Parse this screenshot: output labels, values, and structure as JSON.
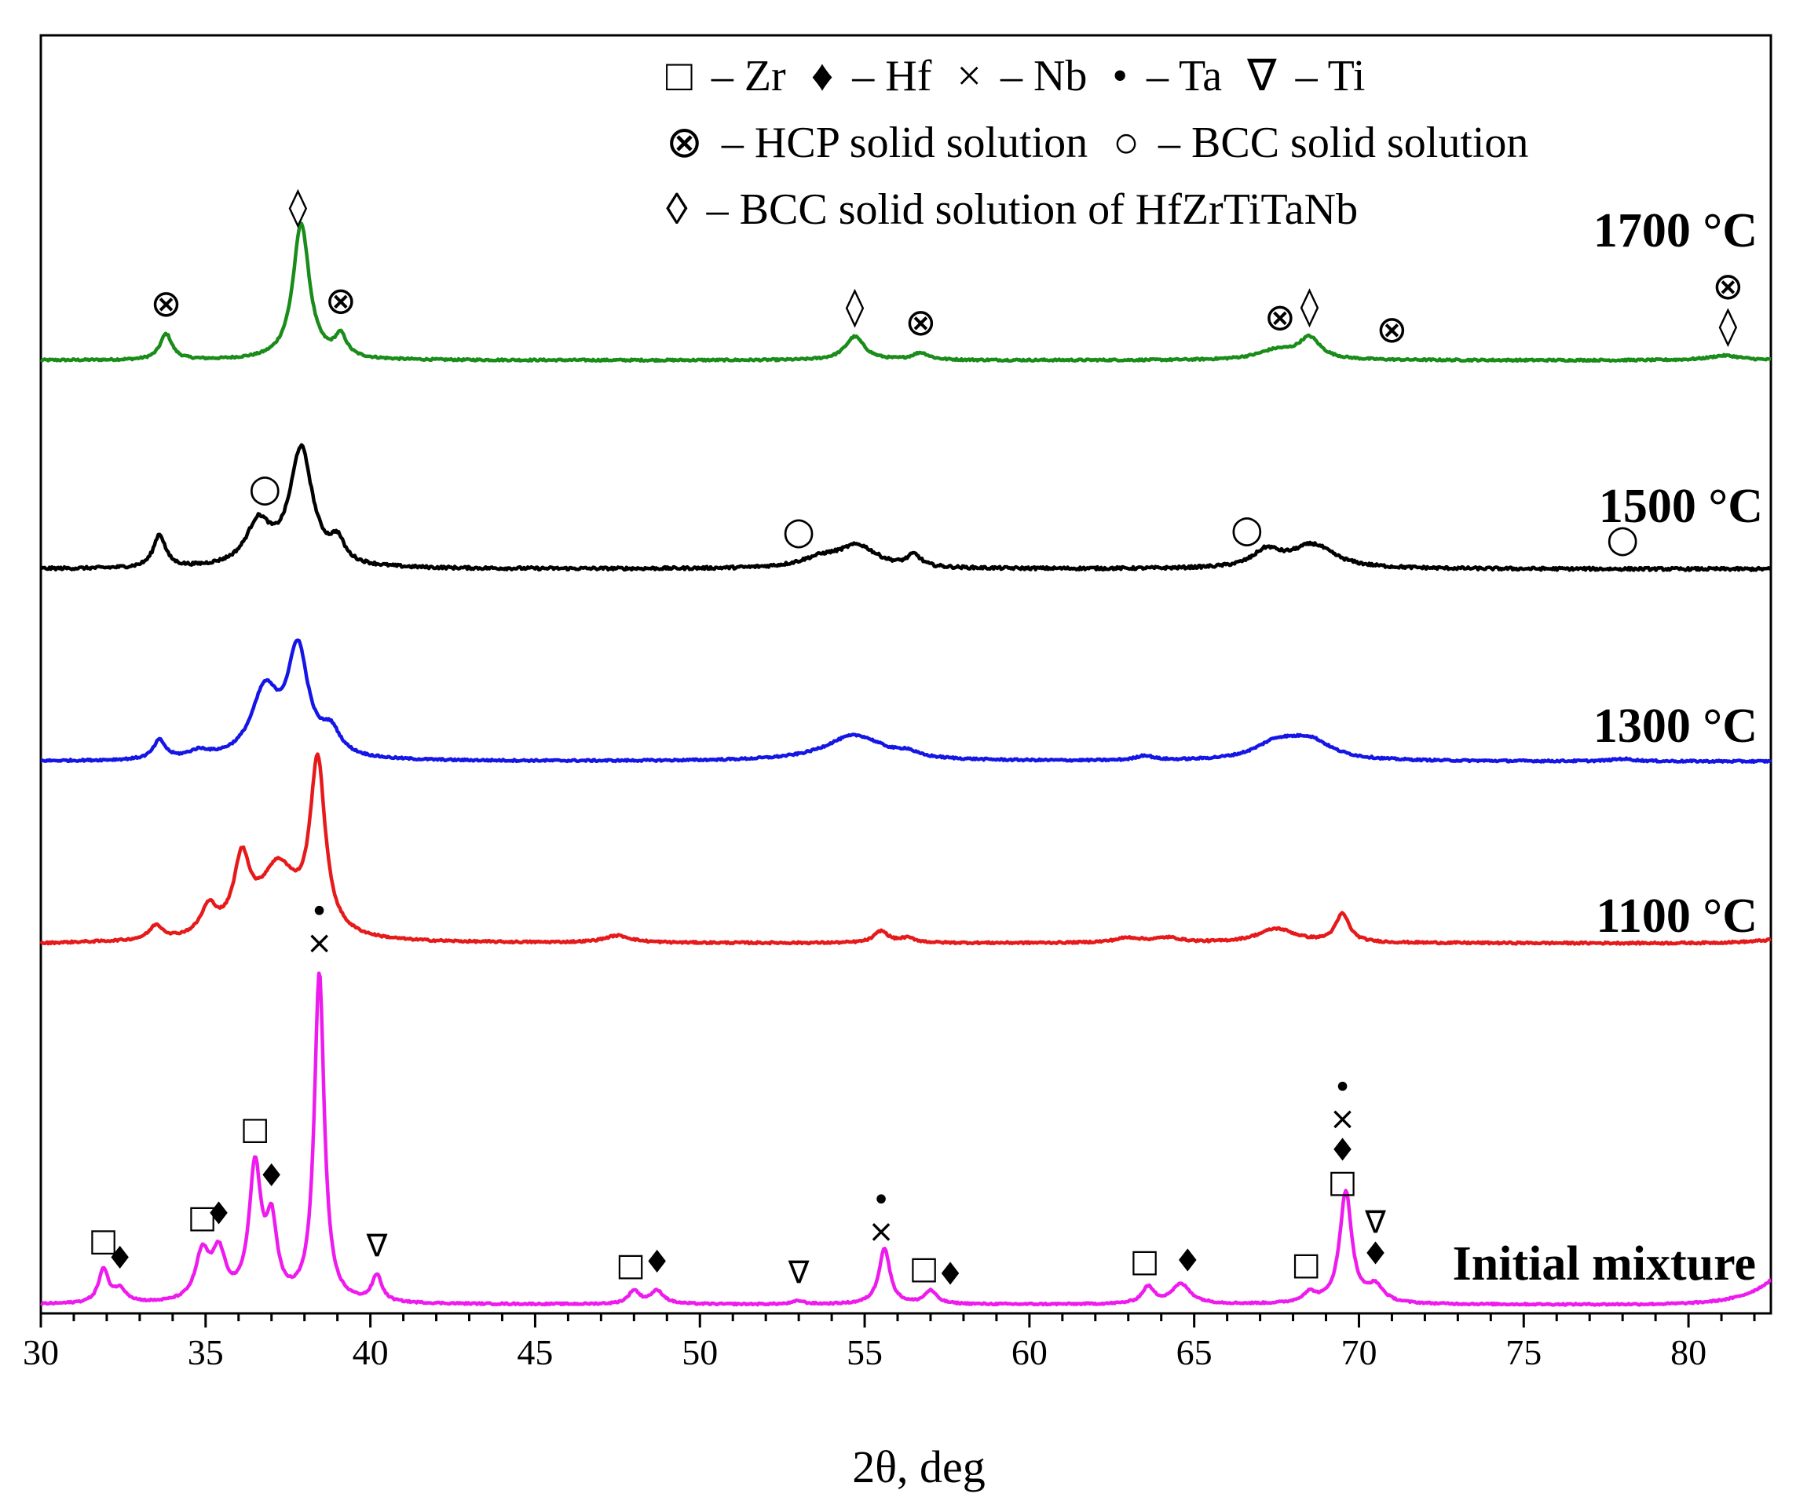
{
  "chart_data": {
    "type": "line",
    "title": "",
    "xlabel": "2θ, deg",
    "ylabel": "",
    "xlim": [
      30,
      82.5
    ],
    "xticks": [
      30,
      35,
      40,
      45,
      50,
      55,
      60,
      65,
      70,
      75,
      80
    ],
    "grid": false,
    "legend": {
      "position": "top",
      "lines": [
        [
          {
            "symbol": "□",
            "text": "– Zr"
          },
          {
            "symbol": "♦",
            "text": "– Hf"
          },
          {
            "symbol": "×",
            "text": "– Nb"
          },
          {
            "symbol": "•",
            "text": "– Ta"
          },
          {
            "symbol": "∇",
            "text": "– Ti"
          }
        ],
        [
          {
            "symbol": "⊗",
            "text": "– HCP solid solution"
          },
          {
            "symbol": "○",
            "text": "– BCC solid solution"
          }
        ],
        [
          {
            "symbol": "◊",
            "text": "– BCC solid solution of HfZrTiTaNb"
          }
        ]
      ]
    },
    "series": [
      {
        "name": "1700 °C",
        "color": "#1a8c1a",
        "baseline": 0.07,
        "noise": 0.004,
        "endpoints": [
          0.07,
          0.07
        ],
        "peaks": [
          [
            33.8,
            0.11,
            0.22
          ],
          [
            37.9,
            0.58,
            0.3
          ],
          [
            39.1,
            0.09,
            0.22
          ],
          [
            54.7,
            0.1,
            0.35
          ],
          [
            56.7,
            0.03,
            0.3
          ],
          [
            67.5,
            0.04,
            0.7
          ],
          [
            68.5,
            0.09,
            0.4
          ],
          [
            81.1,
            0.02,
            0.6
          ]
        ]
      },
      {
        "name": "1500 °C",
        "color": "#000000",
        "baseline": 0.05,
        "noise": 0.006,
        "endpoints": [
          0.05,
          0.05
        ],
        "peaks": [
          [
            33.6,
            0.14,
            0.22
          ],
          [
            36.6,
            0.18,
            0.45
          ],
          [
            37.9,
            0.5,
            0.42
          ],
          [
            39.0,
            0.09,
            0.25
          ],
          [
            53.7,
            0.04,
            0.8
          ],
          [
            54.8,
            0.09,
            0.7
          ],
          [
            56.5,
            0.05,
            0.25
          ],
          [
            67.2,
            0.07,
            0.5
          ],
          [
            68.6,
            0.1,
            0.8
          ]
        ]
      },
      {
        "name": "1300 °C",
        "color": "#1515e6",
        "baseline": 0.05,
        "noise": 0.004,
        "endpoints": [
          0.05,
          0.05
        ],
        "peaks": [
          [
            33.6,
            0.08,
            0.22
          ],
          [
            34.8,
            0.03,
            0.4
          ],
          [
            36.8,
            0.28,
            0.5
          ],
          [
            37.8,
            0.45,
            0.38
          ],
          [
            38.8,
            0.1,
            0.35
          ],
          [
            54.7,
            0.11,
            1.1
          ],
          [
            56.3,
            0.02,
            0.3
          ],
          [
            63.5,
            0.02,
            0.3
          ],
          [
            67.5,
            0.07,
            0.8
          ],
          [
            68.5,
            0.08,
            0.8
          ],
          [
            78.0,
            0.01,
            0.4
          ]
        ]
      },
      {
        "name": "1100 °C",
        "color": "#e61a1a",
        "baseline": 0.045,
        "noise": 0.004,
        "endpoints": [
          0.04,
          0.06
        ],
        "peaks": [
          [
            33.5,
            0.06,
            0.25
          ],
          [
            35.1,
            0.12,
            0.3
          ],
          [
            36.1,
            0.3,
            0.3
          ],
          [
            37.2,
            0.3,
            0.7
          ],
          [
            38.4,
            0.72,
            0.28
          ],
          [
            47.5,
            0.03,
            0.5
          ],
          [
            55.5,
            0.05,
            0.25
          ],
          [
            56.3,
            0.02,
            0.3
          ],
          [
            63.0,
            0.02,
            0.5
          ],
          [
            64.2,
            0.02,
            0.5
          ],
          [
            67.5,
            0.06,
            0.7
          ],
          [
            69.5,
            0.12,
            0.25
          ]
        ]
      },
      {
        "name": "Initial mixture",
        "color": "#ee1aee",
        "baseline": 0.015,
        "noise": 0.0025,
        "endpoints": [
          0.015,
          0.09
        ],
        "peaks": [
          [
            31.9,
            0.1,
            0.18
          ],
          [
            32.4,
            0.04,
            0.25
          ],
          [
            34.9,
            0.14,
            0.25
          ],
          [
            35.4,
            0.14,
            0.25
          ],
          [
            36.5,
            0.4,
            0.22
          ],
          [
            37.0,
            0.22,
            0.2
          ],
          [
            38.45,
            1.0,
            0.18
          ],
          [
            40.2,
            0.08,
            0.18
          ],
          [
            48.0,
            0.04,
            0.2
          ],
          [
            48.7,
            0.04,
            0.25
          ],
          [
            53.0,
            0.01,
            0.2
          ],
          [
            55.6,
            0.17,
            0.2
          ],
          [
            57.0,
            0.04,
            0.22
          ],
          [
            63.6,
            0.05,
            0.22
          ],
          [
            64.6,
            0.06,
            0.35
          ],
          [
            68.5,
            0.03,
            0.25
          ],
          [
            69.6,
            0.34,
            0.22
          ],
          [
            70.5,
            0.05,
            0.3
          ]
        ]
      }
    ],
    "labels": [
      "1700 °C",
      "1500 °C",
      "1300 °C",
      "1100 °C",
      "Initial mixture"
    ],
    "annotations": [
      {
        "series": "1700 °C",
        "x": 33.8,
        "symbols": [
          "⊗"
        ]
      },
      {
        "series": "1700 °C",
        "x": 37.8,
        "symbols": [
          "◊"
        ]
      },
      {
        "series": "1700 °C",
        "x": 39.1,
        "symbols": [
          "⊗"
        ]
      },
      {
        "series": "1700 °C",
        "x": 54.7,
        "symbols": [
          "◊"
        ]
      },
      {
        "series": "1700 °C",
        "x": 56.7,
        "symbols": [
          "⊗"
        ]
      },
      {
        "series": "1700 °C",
        "x": 67.6,
        "symbols": [
          "⊗"
        ]
      },
      {
        "series": "1700 °C",
        "x": 68.5,
        "symbols": [
          "◊"
        ]
      },
      {
        "series": "1700 °C",
        "x": 71.0,
        "symbols": [
          "⊗"
        ]
      },
      {
        "series": "1700 °C",
        "x": 81.2,
        "symbols": [
          "⊗",
          "◊"
        ]
      },
      {
        "series": "1500 °C",
        "x": 36.8,
        "symbols": [
          "○"
        ]
      },
      {
        "series": "1500 °C",
        "x": 53.0,
        "symbols": [
          "○"
        ]
      },
      {
        "series": "1500 °C",
        "x": 66.6,
        "symbols": [
          "○"
        ]
      },
      {
        "series": "1500 °C",
        "x": 78.0,
        "symbols": [
          "○"
        ]
      },
      {
        "series": "Initial mixture",
        "x": 31.9,
        "symbols": [
          "□"
        ]
      },
      {
        "series": "Initial mixture",
        "x": 32.4,
        "symbols": [
          "♦"
        ]
      },
      {
        "series": "Initial mixture",
        "x": 34.9,
        "symbols": [
          "□"
        ]
      },
      {
        "series": "Initial mixture",
        "x": 35.4,
        "symbols": [
          "♦"
        ]
      },
      {
        "series": "Initial mixture",
        "x": 36.5,
        "symbols": [
          "□"
        ]
      },
      {
        "series": "Initial mixture",
        "x": 37.0,
        "symbols": [
          "♦"
        ]
      },
      {
        "series": "Initial mixture",
        "x": 38.45,
        "symbols": [
          "•",
          "×"
        ]
      },
      {
        "series": "Initial mixture",
        "x": 40.2,
        "symbols": [
          "∇"
        ]
      },
      {
        "series": "Initial mixture",
        "x": 47.9,
        "symbols": [
          "□"
        ]
      },
      {
        "series": "Initial mixture",
        "x": 48.7,
        "symbols": [
          "♦"
        ]
      },
      {
        "series": "Initial mixture",
        "x": 53.0,
        "symbols": [
          "∇"
        ]
      },
      {
        "series": "Initial mixture",
        "x": 55.5,
        "symbols": [
          "•",
          "×"
        ]
      },
      {
        "series": "Initial mixture",
        "x": 56.8,
        "symbols": [
          "□"
        ]
      },
      {
        "series": "Initial mixture",
        "x": 57.6,
        "symbols": [
          "♦"
        ]
      },
      {
        "series": "Initial mixture",
        "x": 63.5,
        "symbols": [
          "□"
        ]
      },
      {
        "series": "Initial mixture",
        "x": 64.8,
        "symbols": [
          "♦"
        ]
      },
      {
        "series": "Initial mixture",
        "x": 68.4,
        "symbols": [
          "□"
        ]
      },
      {
        "series": "Initial mixture",
        "x": 69.5,
        "symbols": [
          "•",
          "×",
          "♦",
          "□"
        ]
      },
      {
        "series": "Initial mixture",
        "x": 70.5,
        "symbols": [
          "∇",
          "♦"
        ]
      }
    ]
  }
}
